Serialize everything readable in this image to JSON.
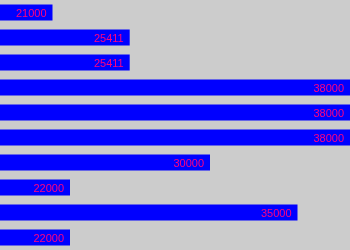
{
  "chart_data": {
    "type": "bar",
    "orientation": "horizontal",
    "categories": [
      null,
      null,
      null,
      null,
      null,
      null,
      null,
      null,
      null,
      null
    ],
    "values": [
      21000,
      25411,
      25411,
      38000,
      38000,
      38000,
      30000,
      22000,
      35000,
      22000
    ],
    "color": "#0000ff",
    "xlim": [
      18000,
      38000
    ],
    "grid": false,
    "tick_labels": false,
    "data_labels": true
  }
}
